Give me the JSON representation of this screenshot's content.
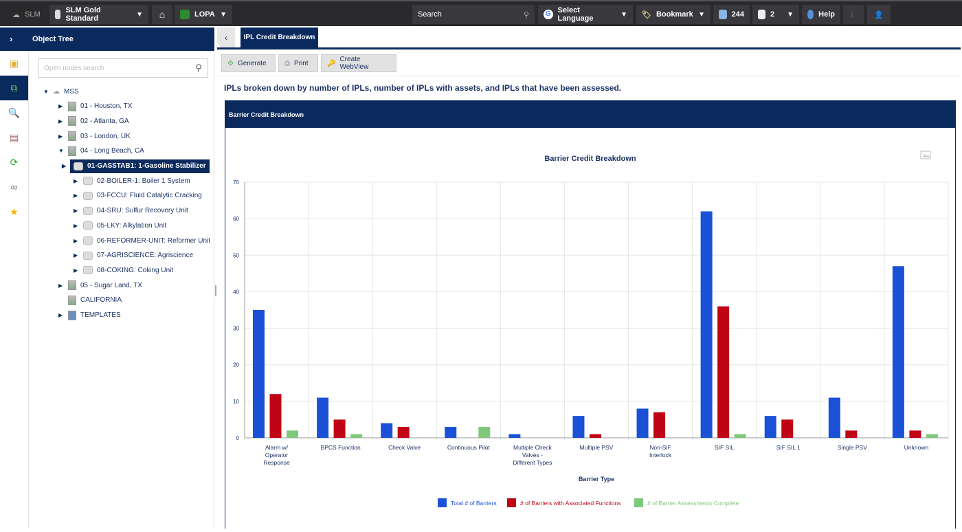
{
  "topbar": {
    "brand": "SLM",
    "database": "SLM Gold Standard",
    "module": "LOPA",
    "search_placeholder": "Search",
    "language": "Select Language",
    "bookmark": "Bookmark",
    "messages": "244",
    "documents": "2",
    "help": "Help"
  },
  "sidebar": {
    "title": "Object Tree",
    "search_placeholder": "Open nodes search",
    "nodes": [
      {
        "label": "MSS",
        "level": 0,
        "expanded": true,
        "icon": "cloud"
      },
      {
        "label": "01 - Houston, TX",
        "level": 1,
        "icon": "building"
      },
      {
        "label": "02 - Atlanta, GA",
        "level": 1,
        "icon": "building"
      },
      {
        "label": "03 - London, UK",
        "level": 1,
        "icon": "building"
      },
      {
        "label": "04 - Long Beach, CA",
        "level": 1,
        "expanded": true,
        "icon": "building"
      },
      {
        "label": "01-GASSTAB1: 1-Gasoline Stabilizer",
        "level": 2,
        "selected": true,
        "icon": "unit"
      },
      {
        "label": "02-BOILER-1: Boiler 1 System",
        "level": 2,
        "icon": "unit"
      },
      {
        "label": "03-FCCU: Fluid Catalytic Cracking",
        "level": 2,
        "icon": "unit"
      },
      {
        "label": "04-SRU: Sulfur Recovery Unit",
        "level": 2,
        "icon": "unit"
      },
      {
        "label": "05-LKY: Alkylation Unit",
        "level": 2,
        "icon": "unit"
      },
      {
        "label": "06-REFORMER-UNIT: Reformer Unit",
        "level": 2,
        "icon": "unit"
      },
      {
        "label": "07-AGRISCIENCE: Agriscience",
        "level": 2,
        "icon": "unit"
      },
      {
        "label": "08-COKING: Coking Unit",
        "level": 2,
        "icon": "unit"
      },
      {
        "label": "05 - Sugar Land, TX",
        "level": 1,
        "icon": "building"
      },
      {
        "label": "CALIFORNIA",
        "level": 1,
        "noarrow": true,
        "icon": "building"
      },
      {
        "label": "TEMPLATES",
        "level": 1,
        "icon": "template"
      }
    ]
  },
  "main": {
    "tab": "IPL Credit Breakdown",
    "buttons": {
      "generate": "Generate",
      "print": "Print",
      "webview": "Create WebView"
    },
    "description": "IPLs broken down by number of IPLs, number of IPLs with assets, and IPLs that have been assessed.",
    "panel_title": "Barrier Credit Breakdown"
  },
  "chart_data": {
    "type": "bar",
    "title": "Barrier Credit Breakdown",
    "xlabel": "Barrier Type",
    "ylabel": "",
    "ylim": [
      0,
      70
    ],
    "yticks": [
      0,
      10,
      20,
      30,
      40,
      50,
      60,
      70
    ],
    "grid": true,
    "legend": "bottom",
    "categories": [
      "Alarm w/ Operator Response",
      "BPCS Function",
      "Check Valve",
      "Continuous Pilot",
      "Multiple Check Valves - Different Types",
      "Multiple PSV",
      "Non-SIF Interlock",
      "SIF SIL",
      "SIF SIL 1",
      "Single PSV",
      "Unknown"
    ],
    "series": [
      {
        "name": "Total # of Barriers",
        "color": "#1a51d6",
        "values": [
          35,
          11,
          4,
          3,
          1,
          6,
          8,
          62,
          6,
          11,
          47
        ]
      },
      {
        "name": "# of Barriers with Associated Functions",
        "color": "#c00415",
        "values": [
          12,
          5,
          3,
          0,
          0,
          1,
          7,
          36,
          5,
          2,
          2
        ]
      },
      {
        "name": "# of Barrier Assessments Complete",
        "color": "#7ec87a",
        "values": [
          2,
          1,
          0,
          3,
          0,
          0,
          0,
          1,
          0,
          0,
          1
        ]
      }
    ]
  }
}
